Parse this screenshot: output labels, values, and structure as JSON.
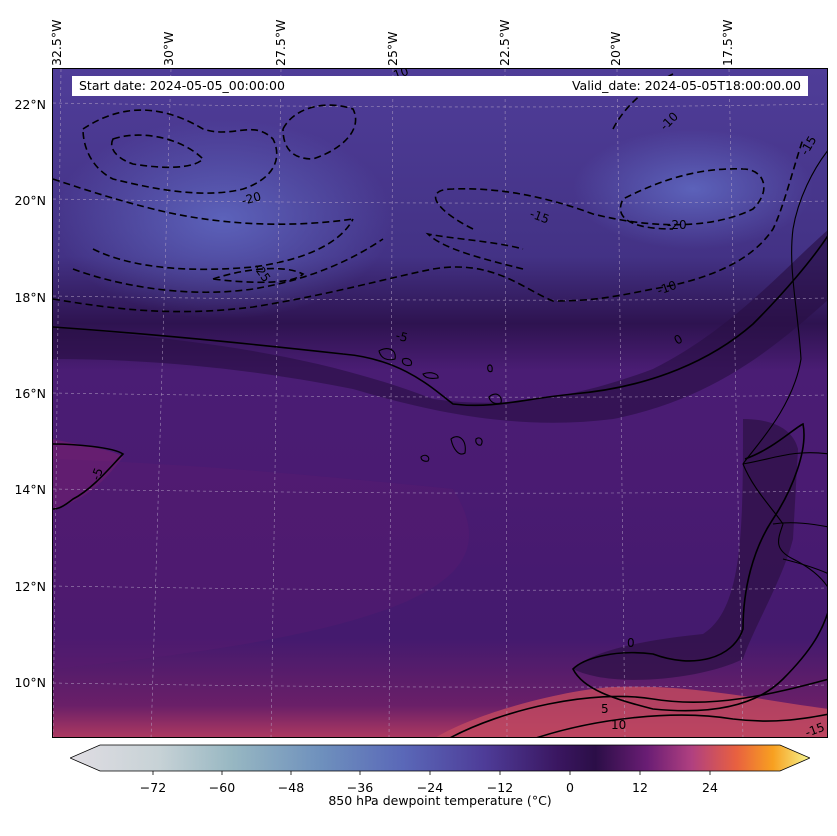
{
  "info": {
    "start_date": "Start date: 2024-05-05_00:00:00",
    "valid_date": "Valid_date: 2024-05-05T18:00:00.00"
  },
  "axes": {
    "latitude_labels": [
      "22°N",
      "20°N",
      "18°N",
      "16°N",
      "14°N",
      "12°N",
      "10°N"
    ],
    "longitude_labels": [
      "32.5°W",
      "30°W",
      "27.5°W",
      "25°W",
      "22.5°W",
      "20°W",
      "17.5°W"
    ]
  },
  "contours": {
    "labels": [
      "-10",
      "-10",
      "-15",
      "-20",
      "-20",
      "-25",
      "-15",
      "-10",
      "-5",
      "0",
      "-5",
      "0",
      "5",
      "10",
      "-15"
    ]
  },
  "colorbar": {
    "title": "850 hPa dewpoint temperature ($^\\circ$C)",
    "ticks": [
      "−72",
      "−60",
      "−48",
      "−36",
      "−24",
      "−12",
      "0",
      "12",
      "24"
    ],
    "colors": {
      "low": "#e0dde3",
      "cold": "#5a68b8",
      "mid": "#3a1660",
      "zero": "#2b0e47",
      "warm": "#b04080",
      "hot": "#f08020",
      "high": "#f5f590"
    }
  },
  "map_colors": {
    "land_outline": "#000000",
    "grid": "#b8a8c8"
  }
}
